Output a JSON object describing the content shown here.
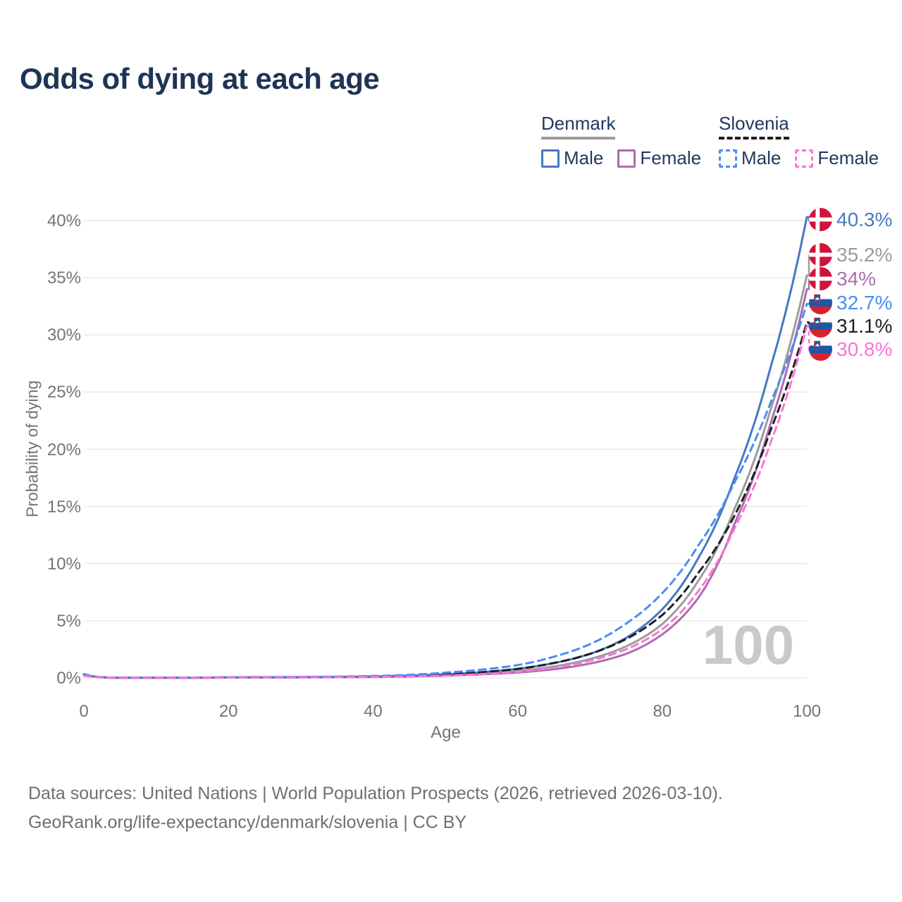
{
  "title": "Odds of dying at each age",
  "watermark": "100",
  "legend": {
    "groups": [
      {
        "label": "Denmark",
        "line_style": "solid",
        "underline_color": "#9c9c9c",
        "items": [
          {
            "label": "Male",
            "color": "#4878c0"
          },
          {
            "label": "Female",
            "color": "#ac6cb0"
          }
        ]
      },
      {
        "label": "Slovenia",
        "line_style": "dashed",
        "underline_color": "#1c1c1c",
        "items": [
          {
            "label": "Male",
            "color": "#4c8cf2"
          },
          {
            "label": "Female",
            "color": "#fb74d6"
          }
        ]
      }
    ]
  },
  "chart_data": {
    "type": "line",
    "title": "Odds of dying at each age",
    "xlabel": "Age",
    "ylabel": "Probability of dying",
    "xlim": [
      0,
      100
    ],
    "ylim": [
      0,
      40
    ],
    "xticks": [
      "0",
      "20",
      "40",
      "60",
      "80",
      "100"
    ],
    "yticks": [
      "0%",
      "5%",
      "10%",
      "15%",
      "20%",
      "25%",
      "30%",
      "35%",
      "40%"
    ],
    "grid": "horizontal",
    "legend_position": "top-right",
    "x": [
      0,
      5,
      10,
      15,
      20,
      25,
      30,
      35,
      40,
      45,
      50,
      55,
      60,
      65,
      70,
      75,
      80,
      85,
      90,
      95,
      100
    ],
    "series": [
      {
        "name": "Denmark Total",
        "country": "Denmark",
        "sex": "both",
        "color": "#9c9c9c",
        "dash": false,
        "end_label": "35.2%",
        "flag": "dk",
        "values": [
          0.3,
          0.01,
          0.01,
          0.02,
          0.04,
          0.05,
          0.06,
          0.07,
          0.1,
          0.16,
          0.25,
          0.4,
          0.62,
          1.0,
          1.65,
          2.75,
          4.7,
          8.5,
          14.8,
          23.5,
          35.2
        ]
      },
      {
        "name": "Denmark Female",
        "country": "Denmark",
        "sex": "female",
        "color": "#ac6cb0",
        "dash": false,
        "end_label": "34%",
        "flag": "dk",
        "values": [
          0.28,
          0.01,
          0.01,
          0.01,
          0.03,
          0.03,
          0.04,
          0.06,
          0.08,
          0.12,
          0.2,
          0.31,
          0.47,
          0.76,
          1.25,
          2.1,
          3.8,
          7.0,
          13.5,
          22.3,
          34.0
        ]
      },
      {
        "name": "Denmark Male",
        "country": "Denmark",
        "sex": "male",
        "color": "#4878c0",
        "dash": false,
        "end_label": "40.3%",
        "flag": "dk",
        "values": [
          0.33,
          0.01,
          0.01,
          0.02,
          0.05,
          0.06,
          0.07,
          0.09,
          0.13,
          0.2,
          0.32,
          0.51,
          0.8,
          1.3,
          2.1,
          3.5,
          6.0,
          10.5,
          17.5,
          27.2,
          40.3
        ]
      },
      {
        "name": "Slovenia Total",
        "country": "Slovenia",
        "sex": "both",
        "color": "#1f1f1f",
        "dash": true,
        "end_label": "31.1%",
        "flag": "si",
        "values": [
          0.22,
          0.01,
          0.01,
          0.02,
          0.04,
          0.05,
          0.06,
          0.08,
          0.11,
          0.18,
          0.3,
          0.49,
          0.79,
          1.3,
          2.1,
          3.4,
          5.5,
          9.2,
          14.2,
          21.7,
          31.1
        ]
      },
      {
        "name": "Slovenia Male",
        "country": "Slovenia",
        "sex": "male",
        "color": "#4c8cf2",
        "dash": true,
        "end_label": "32.7%",
        "flag": "si",
        "values": [
          0.26,
          0.01,
          0.01,
          0.03,
          0.06,
          0.08,
          0.09,
          0.12,
          0.17,
          0.27,
          0.46,
          0.72,
          1.12,
          1.85,
          2.95,
          4.75,
          7.4,
          11.6,
          17.1,
          24.1,
          32.7
        ]
      },
      {
        "name": "Slovenia Female",
        "country": "Slovenia",
        "sex": "female",
        "color": "#fb74d6",
        "dash": true,
        "end_label": "30.8%",
        "flag": "si",
        "values": [
          0.19,
          0.01,
          0.01,
          0.02,
          0.03,
          0.04,
          0.05,
          0.06,
          0.08,
          0.13,
          0.21,
          0.33,
          0.54,
          0.9,
          1.5,
          2.5,
          4.25,
          7.6,
          13.1,
          20.6,
          30.8
        ]
      }
    ],
    "flag_colors": {
      "denmark_red": "#d0133b",
      "slovenia_blue": "#1e57a8",
      "slovenia_red": "#d8232a"
    }
  },
  "footer": {
    "line1": "Data sources: United Nations | World Population Prospects (2026, retrieved 2026-03-10).",
    "line2": "GeoRank.org/life-expectancy/denmark/slovenia | CC BY"
  }
}
